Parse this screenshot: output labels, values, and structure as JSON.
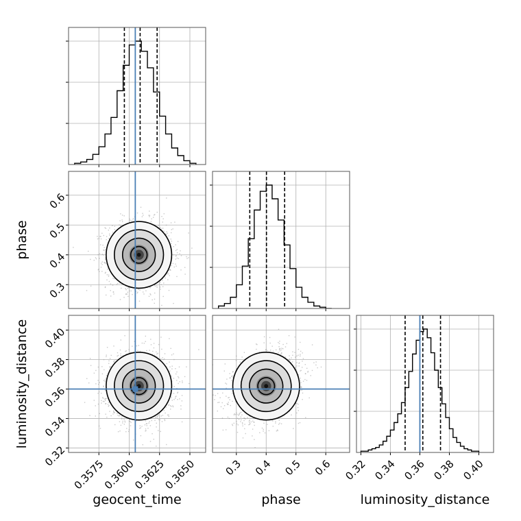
{
  "chart_data": {
    "type": "corner",
    "parameters": [
      "geocent_time",
      "phase",
      "luminosity_distance"
    ],
    "truths": {
      "geocent_time": 0.3605,
      "phase": null,
      "luminosity_distance": 0.36
    },
    "colors": {
      "truth": "#4a7fb5",
      "hist": "#000000",
      "grid": "#b0b0b0",
      "scatter": "#9a9a9a"
    },
    "axes": {
      "geocent_time": {
        "range": [
          0.355,
          0.3663
        ],
        "ticks": [
          0.3575,
          0.36,
          0.3625,
          0.365
        ],
        "tick_labels": [
          "0.3575",
          "0.3600",
          "0.3625",
          "0.3650"
        ],
        "label": "geocent_time"
      },
      "phase": {
        "range": [
          0.22,
          0.68
        ],
        "ticks": [
          0.3,
          0.4,
          0.5,
          0.6
        ],
        "tick_labels": [
          "0.3",
          "0.4",
          "0.5",
          "0.6"
        ],
        "label": "phase"
      },
      "luminosity_distance": {
        "range": [
          0.317,
          0.41
        ],
        "ticks": [
          0.32,
          0.34,
          0.36,
          0.38,
          0.4
        ],
        "tick_labels": [
          "0.32",
          "0.34",
          "0.36",
          "0.38",
          "0.40"
        ],
        "label": "luminosity_distance"
      }
    },
    "marginals": {
      "geocent_time": {
        "edges": [
          0.3555,
          0.356,
          0.3565,
          0.357,
          0.3575,
          0.358,
          0.3585,
          0.359,
          0.3595,
          0.36,
          0.3605,
          0.361,
          0.3615,
          0.362,
          0.3625,
          0.363,
          0.3635,
          0.364,
          0.3645,
          0.365,
          0.3655
        ],
        "counts": [
          1,
          2,
          4,
          8,
          14,
          24,
          37,
          58,
          78,
          94,
          97,
          89,
          76,
          57,
          38,
          24,
          13,
          7,
          3,
          1
        ],
        "quantiles": [
          0.3596,
          0.3609,
          0.3623
        ]
      },
      "phase": {
        "edges": [
          0.24,
          0.26,
          0.28,
          0.3,
          0.32,
          0.34,
          0.36,
          0.38,
          0.4,
          0.42,
          0.44,
          0.46,
          0.48,
          0.5,
          0.52,
          0.54,
          0.56,
          0.58,
          0.6,
          0.62
        ],
        "counts": [
          2,
          4,
          9,
          19,
          34,
          56,
          79,
          94,
          99,
          88,
          71,
          51,
          32,
          17,
          9,
          5,
          2,
          1,
          0
        ],
        "quantiles": [
          0.345,
          0.401,
          0.462
        ]
      },
      "luminosity_distance": {
        "edges": [
          0.32,
          0.3225,
          0.325,
          0.3275,
          0.33,
          0.3325,
          0.335,
          0.3375,
          0.34,
          0.3425,
          0.345,
          0.3475,
          0.35,
          0.3525,
          0.355,
          0.3575,
          0.36,
          0.3625,
          0.365,
          0.3675,
          0.37,
          0.3725,
          0.375,
          0.3775,
          0.38,
          0.3825,
          0.385,
          0.3875,
          0.39,
          0.3925,
          0.395,
          0.3975,
          0.4
        ],
        "counts": [
          1,
          1,
          2,
          3,
          4,
          6,
          9,
          13,
          18,
          24,
          31,
          40,
          52,
          65,
          79,
          90,
          97,
          99,
          92,
          80,
          66,
          52,
          39,
          28,
          19,
          12,
          8,
          5,
          3,
          2,
          1,
          1
        ],
        "quantiles": [
          0.35,
          0.362,
          0.374
        ]
      }
    },
    "density_2d": {
      "phase|geocent_time": {
        "mean": [
          0.3608,
          0.4
        ],
        "sd": [
          0.00135,
          0.056
        ]
      },
      "luminosity_distance|geocent_time": {
        "mean": [
          0.3608,
          0.362
        ],
        "sd": [
          0.00135,
          0.0115
        ]
      },
      "luminosity_distance|phase": {
        "mean": [
          0.4,
          0.362
        ],
        "sd": [
          0.056,
          0.0115
        ],
        "rho": 0.25
      }
    },
    "contour_levels_sigma": [
      0.5,
      1.0,
      1.5,
      2.0
    ]
  }
}
